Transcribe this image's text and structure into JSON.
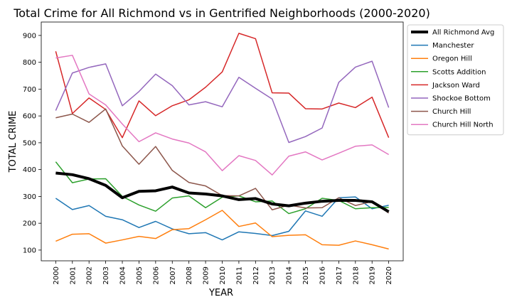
{
  "chart_data": {
    "type": "line",
    "title": "Total Crime for All Richmond vs in Gentrified Neighborhoods (2000-2020)",
    "xlabel": "YEAR",
    "ylabel": "TOTAL CRIME",
    "x": [
      2000,
      2001,
      2002,
      2003,
      2004,
      2005,
      2006,
      2007,
      2008,
      2009,
      2010,
      2011,
      2012,
      2013,
      2014,
      2015,
      2016,
      2017,
      2018,
      2019,
      2020
    ],
    "ylim": [
      60,
      950
    ],
    "yticks": [
      100,
      200,
      300,
      400,
      500,
      600,
      700,
      800,
      900
    ],
    "grid": false,
    "legend_position": "top-right",
    "series": [
      {
        "name": "All Richmond Avg",
        "color": "#000000",
        "width": 4,
        "values": [
          387,
          381,
          366,
          341,
          295,
          319,
          321,
          335,
          313,
          309,
          302,
          288,
          292,
          272,
          265,
          275,
          282,
          285,
          285,
          280,
          243
        ]
      },
      {
        "name": "Manchester",
        "color": "#1f77b4",
        "width": 1.5,
        "values": [
          293,
          251,
          266,
          226,
          213,
          184,
          207,
          179,
          161,
          165,
          138,
          168,
          162,
          154,
          170,
          246,
          226,
          295,
          298,
          254,
          267
        ]
      },
      {
        "name": "Oregon Hill",
        "color": "#ff7f0e",
        "width": 1.5,
        "values": [
          133,
          159,
          161,
          126,
          138,
          151,
          143,
          176,
          180,
          213,
          248,
          188,
          201,
          150,
          155,
          157,
          120,
          118,
          134,
          120,
          104
        ]
      },
      {
        "name": "Scotts Addition",
        "color": "#2ca02c",
        "width": 1.5,
        "values": [
          429,
          351,
          365,
          366,
          300,
          268,
          245,
          294,
          302,
          258,
          297,
          302,
          280,
          283,
          236,
          254,
          293,
          285,
          254,
          258,
          259
        ]
      },
      {
        "name": "Jackson Ward",
        "color": "#d62728",
        "width": 1.5,
        "values": [
          841,
          609,
          667,
          624,
          519,
          656,
          601,
          638,
          660,
          707,
          764,
          908,
          888,
          686,
          685,
          627,
          626,
          648,
          631,
          670,
          519
        ]
      },
      {
        "name": "Shockoe Bottom",
        "color": "#9467bd",
        "width": 1.5,
        "values": [
          620,
          760,
          781,
          794,
          638,
          691,
          756,
          713,
          641,
          653,
          634,
          744,
          703,
          663,
          501,
          523,
          555,
          725,
          782,
          804,
          631
        ]
      },
      {
        "name": "Church Hill",
        "color": "#8c564b",
        "width": 1.5,
        "values": [
          593,
          607,
          576,
          626,
          488,
          420,
          486,
          397,
          352,
          339,
          303,
          302,
          330,
          250,
          268,
          257,
          258,
          295,
          266,
          281,
          238
        ]
      },
      {
        "name": "Church Hill North",
        "color": "#e377c2",
        "width": 1.5,
        "values": [
          816,
          826,
          682,
          641,
          570,
          504,
          537,
          514,
          499,
          466,
          396,
          452,
          434,
          380,
          450,
          466,
          436,
          461,
          487,
          492,
          456
        ]
      }
    ]
  }
}
